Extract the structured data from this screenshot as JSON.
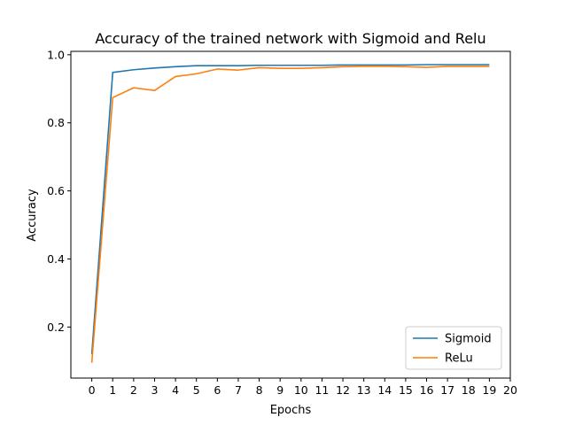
{
  "chart_data": {
    "type": "line",
    "title": "Accuracy of the trained network with Sigmoid and Relu",
    "xlabel": "Epochs",
    "ylabel": "Accuracy",
    "xlim": [
      -1,
      20
    ],
    "ylim": [
      0.05,
      1.01
    ],
    "xticks": [
      0,
      1,
      2,
      3,
      4,
      5,
      6,
      7,
      8,
      9,
      10,
      11,
      12,
      13,
      14,
      15,
      16,
      17,
      18,
      19,
      20
    ],
    "xtick_labels": [
      "0",
      "1",
      "2",
      "3",
      "4",
      "5",
      "6",
      "7",
      "8",
      "9",
      "10",
      "11",
      "12",
      "13",
      "14",
      "15",
      "16",
      "17",
      "18",
      "19",
      "20"
    ],
    "yticks": [
      0.2,
      0.4,
      0.6,
      0.8,
      1.0
    ],
    "ytick_labels": [
      "0.2",
      "0.4",
      "0.6",
      "0.8",
      "1.0"
    ],
    "grid": false,
    "legend": "lower-right",
    "x": [
      0,
      1,
      2,
      3,
      4,
      5,
      6,
      7,
      8,
      9,
      10,
      11,
      12,
      13,
      14,
      15,
      16,
      17,
      18,
      19
    ],
    "series": [
      {
        "name": "Sigmoid",
        "color": "#1f77b4",
        "values": [
          0.12,
          0.948,
          0.956,
          0.961,
          0.965,
          0.968,
          0.968,
          0.968,
          0.969,
          0.969,
          0.969,
          0.969,
          0.97,
          0.97,
          0.97,
          0.97,
          0.971,
          0.971,
          0.971,
          0.971
        ]
      },
      {
        "name": "ReLu",
        "color": "#ff7f0e",
        "values": [
          0.095,
          0.874,
          0.903,
          0.895,
          0.936,
          0.944,
          0.958,
          0.955,
          0.962,
          0.96,
          0.96,
          0.962,
          0.965,
          0.966,
          0.966,
          0.965,
          0.963,
          0.966,
          0.966,
          0.966
        ]
      }
    ]
  }
}
